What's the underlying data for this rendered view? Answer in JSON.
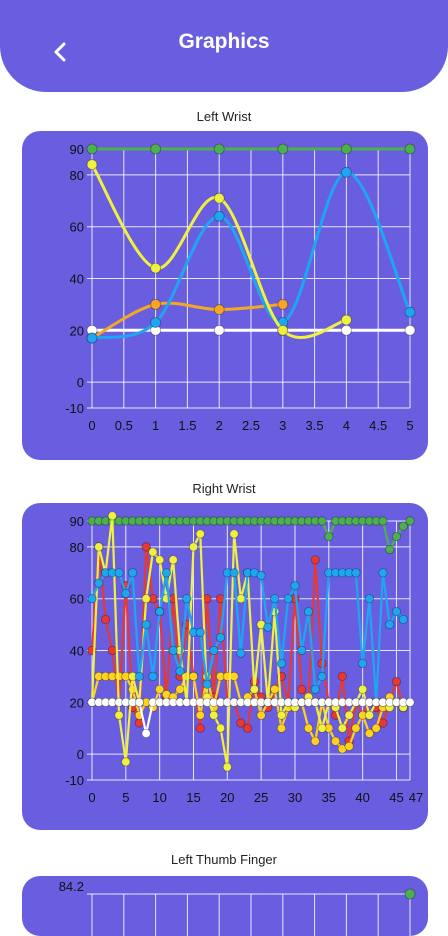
{
  "header": {
    "title": "Graphics",
    "back_icon": "chevron-left-icon"
  },
  "colors": {
    "accent": "#6a5ee0",
    "green": "#4caf50",
    "yellow": "#f0f040",
    "blue": "#1ea6f0",
    "orange": "#f5a623",
    "white": "#ffffff",
    "red": "#e53935",
    "gold": "#ffd21f"
  },
  "chart_data": [
    {
      "type": "line",
      "title": "Left Wrist",
      "xlim": [
        0,
        5
      ],
      "ylim": [
        -10,
        90
      ],
      "x_ticks": [
        "0",
        "0.5",
        "1",
        "1.5",
        "2",
        "2.5",
        "3",
        "3.5",
        "4",
        "4.5",
        "5"
      ],
      "y_ticks": [
        "90",
        "80",
        "60",
        "40",
        "20",
        "0",
        "-10"
      ],
      "grid": true,
      "series": [
        {
          "color": "green",
          "x": [
            0,
            1,
            2,
            3,
            4,
            5
          ],
          "y": [
            90,
            90,
            90,
            90,
            90,
            90
          ]
        },
        {
          "color": "white",
          "x": [
            0,
            1,
            2,
            3,
            4,
            5
          ],
          "y": [
            20,
            20,
            20,
            20,
            20,
            20
          ]
        },
        {
          "color": "orange",
          "x": [
            0,
            1,
            2,
            3
          ],
          "y": [
            17,
            30,
            28,
            30
          ]
        },
        {
          "color": "blue",
          "x": [
            0,
            1,
            2,
            3,
            4,
            5
          ],
          "y": [
            17,
            23,
            64,
            23,
            81,
            27
          ]
        },
        {
          "color": "yellow",
          "x": [
            0,
            1,
            2,
            3,
            4
          ],
          "y": [
            84,
            44,
            71,
            20,
            24
          ]
        }
      ]
    },
    {
      "type": "line",
      "title": "Right Wrist",
      "xlim": [
        0,
        47
      ],
      "ylim": [
        -10,
        90
      ],
      "x_ticks": [
        "0",
        "5",
        "10",
        "15",
        "20",
        "25",
        "30",
        "35",
        "40",
        "45",
        "47"
      ],
      "y_ticks": [
        "90",
        "80",
        "60",
        "40",
        "20",
        "0",
        "-10"
      ],
      "grid": true,
      "series": [
        {
          "color": "green",
          "x": [
            0,
            1,
            2,
            3,
            4,
            5,
            6,
            7,
            8,
            9,
            10,
            11,
            12,
            13,
            14,
            15,
            16,
            17,
            18,
            19,
            20,
            21,
            22,
            23,
            24,
            25,
            26,
            27,
            28,
            29,
            30,
            31,
            32,
            33,
            34,
            35,
            36,
            37,
            38,
            39,
            40,
            41,
            42,
            43,
            44,
            45,
            46,
            47
          ],
          "y": [
            90,
            90,
            90,
            90,
            90,
            90,
            90,
            90,
            90,
            90,
            90,
            90,
            90,
            90,
            90,
            90,
            90,
            90,
            90,
            90,
            90,
            90,
            90,
            90,
            90,
            90,
            90,
            90,
            90,
            90,
            90,
            90,
            90,
            90,
            90,
            84,
            90,
            90,
            90,
            90,
            90,
            90,
            90,
            90,
            79,
            84,
            88,
            90
          ]
        },
        {
          "color": "red",
          "x": [
            0,
            1,
            2,
            3,
            4,
            5,
            6,
            7,
            8,
            9,
            10,
            11,
            12,
            13,
            14,
            15,
            16,
            17,
            18,
            19,
            20,
            21,
            22,
            23,
            24,
            25,
            26,
            27,
            28,
            29,
            30,
            31,
            32,
            33,
            34,
            35,
            36,
            37,
            38,
            39,
            40,
            41,
            42,
            43,
            44,
            45,
            46
          ],
          "y": [
            40,
            80,
            52,
            40,
            20,
            65,
            18,
            12,
            80,
            60,
            55,
            22,
            60,
            30,
            50,
            30,
            10,
            60,
            22,
            60,
            20,
            20,
            12,
            10,
            28,
            22,
            18,
            25,
            30,
            20,
            60,
            25,
            20,
            75,
            35,
            20,
            15,
            30,
            5,
            20,
            15,
            20,
            18,
            12,
            20,
            28,
            18
          ]
        },
        {
          "color": "gold",
          "x": [
            0,
            1,
            2,
            3,
            4,
            5,
            6,
            7,
            8,
            9,
            10,
            11,
            12,
            13,
            14,
            15,
            16,
            17,
            18,
            19,
            20,
            21,
            22,
            23,
            24,
            25,
            26,
            27,
            28,
            29,
            30,
            31,
            32,
            33,
            34,
            35,
            36,
            37,
            38,
            39,
            40,
            41,
            42,
            43,
            44,
            45,
            46
          ],
          "y": [
            20,
            30,
            30,
            30,
            30,
            30,
            25,
            15,
            20,
            18,
            25,
            23,
            22,
            25,
            30,
            30,
            15,
            30,
            18,
            30,
            30,
            30,
            20,
            22,
            25,
            15,
            20,
            25,
            10,
            18,
            20,
            20,
            10,
            5,
            20,
            10,
            5,
            2,
            3,
            10,
            15,
            8,
            10,
            18,
            22,
            20,
            18
          ]
        },
        {
          "color": "yellow",
          "x": [
            0,
            1,
            2,
            3,
            4,
            5,
            6,
            7,
            8,
            9,
            10,
            11,
            12,
            13,
            14,
            15,
            16,
            17,
            18,
            19,
            20,
            21,
            22,
            23,
            24,
            25,
            26,
            27,
            28,
            29,
            30,
            31,
            32,
            33,
            34,
            35,
            36,
            37,
            38,
            39,
            40,
            41,
            42,
            43,
            44,
            45,
            46
          ],
          "y": [
            20,
            80,
            70,
            92,
            15,
            -3,
            30,
            20,
            60,
            78,
            75,
            60,
            75,
            40,
            20,
            80,
            85,
            22,
            15,
            10,
            -5,
            85,
            60,
            70,
            25,
            50,
            20,
            55,
            15,
            20,
            18,
            20,
            22,
            20,
            10,
            20,
            18,
            10,
            15,
            20,
            25,
            15,
            20,
            20,
            18,
            20,
            18
          ]
        },
        {
          "color": "blue",
          "x": [
            0,
            1,
            2,
            3,
            4,
            5,
            6,
            7,
            8,
            9,
            10,
            11,
            12,
            13,
            14,
            15,
            16,
            17,
            18,
            19,
            20,
            21,
            22,
            23,
            24,
            25,
            26,
            27,
            28,
            29,
            30,
            31,
            32,
            33,
            34,
            35,
            36,
            37,
            38,
            39,
            40,
            41,
            42,
            43,
            44,
            45,
            46
          ],
          "y": [
            60,
            66,
            70,
            70,
            70,
            62,
            70,
            30,
            50,
            30,
            55,
            70,
            40,
            32,
            60,
            47,
            47,
            27,
            40,
            45,
            70,
            70,
            39,
            70,
            70,
            69,
            49,
            60,
            35,
            60,
            65,
            40,
            55,
            25,
            30,
            70,
            70,
            70,
            70,
            70,
            35,
            60,
            20,
            70,
            50,
            55,
            52
          ]
        },
        {
          "color": "white",
          "x": [
            0,
            1,
            2,
            3,
            4,
            5,
            6,
            7,
            8,
            9,
            10,
            11,
            12,
            13,
            14,
            15,
            16,
            17,
            18,
            19,
            20,
            21,
            22,
            23,
            24,
            25,
            26,
            27,
            28,
            29,
            30,
            31,
            32,
            33,
            34,
            35,
            36,
            37,
            38,
            39,
            40,
            41,
            42,
            43,
            44,
            45,
            46,
            47
          ],
          "y": [
            20,
            20,
            20,
            20,
            20,
            20,
            20,
            20,
            8,
            20,
            20,
            20,
            20,
            20,
            20,
            20,
            20,
            20,
            20,
            20,
            20,
            20,
            20,
            20,
            20,
            20,
            20,
            20,
            20,
            20,
            20,
            20,
            20,
            20,
            20,
            20,
            20,
            20,
            20,
            20,
            20,
            20,
            20,
            20,
            20,
            20,
            20,
            20
          ]
        }
      ]
    },
    {
      "type": "line",
      "title": "Left Thumb Finger",
      "y_ticks": [
        "84.2"
      ],
      "grid": true,
      "series": [
        {
          "color": "green",
          "x": [
            47
          ],
          "y": [
            84.2
          ]
        }
      ]
    }
  ]
}
